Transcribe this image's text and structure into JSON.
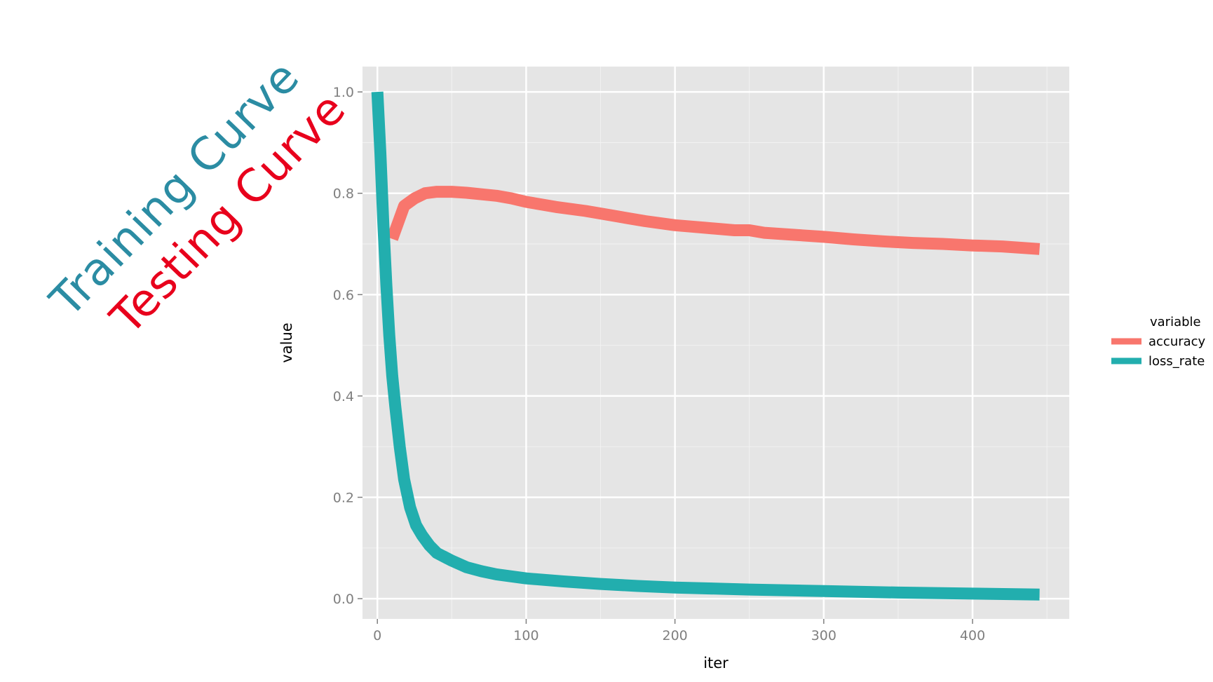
{
  "annotations": {
    "training_label": "Training Curve",
    "training_color": "#2b8ca3",
    "testing_label": "Testing Curve",
    "testing_color": "#e8001c"
  },
  "chart_data": {
    "type": "line",
    "xlabel": "iter",
    "ylabel": "value",
    "xlim": [
      -10,
      465
    ],
    "ylim": [
      -0.04,
      1.05
    ],
    "x_ticks": [
      0,
      100,
      200,
      300,
      400
    ],
    "x_tick_labels": [
      "0",
      "100",
      "200",
      "300",
      "400"
    ],
    "y_ticks": [
      0.0,
      0.2,
      0.4,
      0.6,
      0.8,
      1.0
    ],
    "y_tick_labels": [
      "0.0",
      "0.2",
      "0.4",
      "0.6",
      "0.8",
      "1.0"
    ],
    "grid": true,
    "panel_background": "#e5e5e5",
    "legend": {
      "title": "variable",
      "position": "right"
    },
    "series": [
      {
        "name": "accuracy",
        "color": "#f8766d",
        "x": [
          10,
          18,
          25,
          32,
          40,
          50,
          60,
          70,
          80,
          90,
          100,
          120,
          140,
          160,
          180,
          200,
          220,
          240,
          250,
          260,
          280,
          300,
          320,
          340,
          360,
          380,
          400,
          420,
          445
        ],
        "y": [
          0.71,
          0.775,
          0.79,
          0.8,
          0.803,
          0.803,
          0.801,
          0.798,
          0.795,
          0.79,
          0.783,
          0.773,
          0.765,
          0.755,
          0.745,
          0.737,
          0.732,
          0.727,
          0.727,
          0.722,
          0.718,
          0.714,
          0.709,
          0.705,
          0.702,
          0.7,
          0.697,
          0.695,
          0.69
        ]
      },
      {
        "name": "loss_rate",
        "color": "#22aeae",
        "x": [
          0,
          2,
          4,
          6,
          8,
          10,
          12,
          15,
          18,
          22,
          26,
          30,
          35,
          40,
          50,
          60,
          70,
          80,
          100,
          125,
          150,
          175,
          200,
          250,
          300,
          350,
          400,
          445
        ],
        "y": [
          1.0,
          0.88,
          0.74,
          0.62,
          0.52,
          0.44,
          0.38,
          0.3,
          0.235,
          0.18,
          0.145,
          0.125,
          0.105,
          0.09,
          0.075,
          0.062,
          0.054,
          0.048,
          0.04,
          0.034,
          0.029,
          0.025,
          0.022,
          0.018,
          0.015,
          0.012,
          0.01,
          0.008
        ]
      }
    ]
  }
}
